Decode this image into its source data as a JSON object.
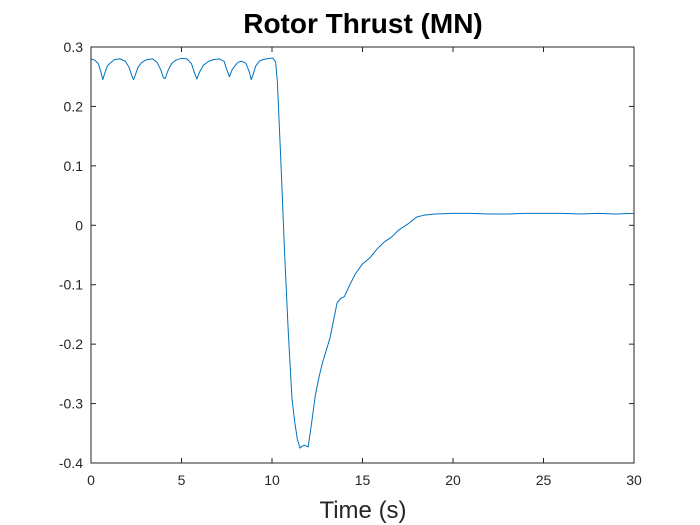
{
  "chart_data": {
    "type": "line",
    "title": "Rotor Thrust (MN)",
    "xlabel": "Time (s)",
    "ylabel": "",
    "xlim": [
      0,
      30
    ],
    "ylim": [
      -0.4,
      0.3
    ],
    "xticks": [
      "0",
      "5",
      "10",
      "15",
      "20",
      "25",
      "30"
    ],
    "yticks": [
      "0.3",
      "0.2",
      "0.1",
      "0",
      "-0.1",
      "-0.2",
      "-0.3",
      "-0.4"
    ],
    "grid": false,
    "legend": "none",
    "series": [
      {
        "color": "#0072bd",
        "x": [
          0.0,
          0.2,
          0.4,
          0.55,
          0.65,
          0.75,
          0.9,
          1.1,
          1.3,
          1.6,
          1.9,
          2.1,
          2.25,
          2.35,
          2.45,
          2.6,
          2.8,
          3.1,
          3.4,
          3.65,
          3.85,
          4.0,
          4.1,
          4.25,
          4.45,
          4.7,
          5.0,
          5.3,
          5.55,
          5.7,
          5.85,
          6.0,
          6.2,
          6.5,
          6.8,
          7.1,
          7.35,
          7.5,
          7.65,
          7.8,
          7.95,
          8.1,
          8.3,
          8.55,
          8.75,
          8.85,
          8.95,
          9.1,
          9.3,
          9.5,
          9.7,
          9.9,
          10.05,
          10.2,
          10.3,
          10.5,
          10.7,
          10.9,
          11.1,
          11.25,
          11.4,
          11.55,
          11.65,
          11.8,
          12.0,
          12.2,
          12.4,
          12.6,
          12.8,
          13.0,
          13.2,
          13.4,
          13.6,
          13.8,
          14.0,
          14.3,
          14.6,
          15.0,
          15.4,
          15.8,
          16.2,
          16.6,
          17.0,
          17.5,
          18.0,
          18.4,
          19.0,
          20.0,
          21.0,
          22.0,
          23.0,
          24.0,
          25.0,
          26.0,
          27.0,
          28.0,
          29.0,
          30.0
        ],
        "y": [
          0.28,
          0.278,
          0.272,
          0.258,
          0.245,
          0.255,
          0.268,
          0.274,
          0.279,
          0.28,
          0.276,
          0.266,
          0.252,
          0.245,
          0.253,
          0.266,
          0.274,
          0.279,
          0.28,
          0.274,
          0.262,
          0.248,
          0.247,
          0.26,
          0.272,
          0.278,
          0.281,
          0.28,
          0.272,
          0.258,
          0.246,
          0.258,
          0.269,
          0.276,
          0.279,
          0.28,
          0.276,
          0.262,
          0.25,
          0.262,
          0.268,
          0.274,
          0.276,
          0.273,
          0.258,
          0.245,
          0.253,
          0.268,
          0.276,
          0.279,
          0.28,
          0.281,
          0.281,
          0.275,
          0.24,
          0.1,
          -0.05,
          -0.18,
          -0.29,
          -0.33,
          -0.36,
          -0.375,
          -0.372,
          -0.37,
          -0.373,
          -0.33,
          -0.285,
          -0.255,
          -0.23,
          -0.21,
          -0.19,
          -0.16,
          -0.13,
          -0.123,
          -0.12,
          -0.1,
          -0.082,
          -0.065,
          -0.055,
          -0.04,
          -0.028,
          -0.02,
          -0.008,
          0.002,
          0.014,
          0.017,
          0.019,
          0.02,
          0.02,
          0.019,
          0.019,
          0.02,
          0.02,
          0.02,
          0.019,
          0.02,
          0.019,
          0.02
        ]
      }
    ]
  }
}
